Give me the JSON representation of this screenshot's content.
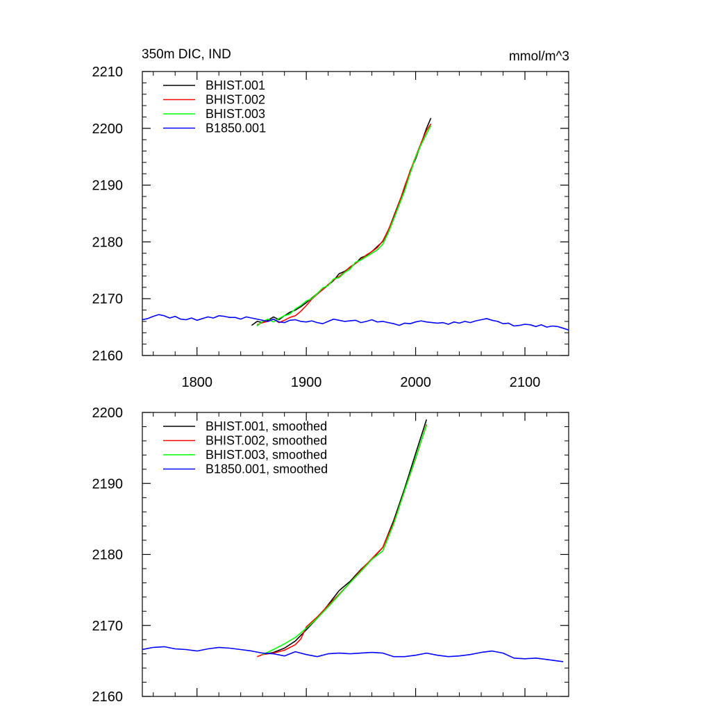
{
  "chart_data": [
    {
      "type": "line",
      "title": "350m DIC, IND",
      "units": "mmol/m^3",
      "xlim": [
        1750,
        2140
      ],
      "ylim": [
        2160,
        2210
      ],
      "xticks": [
        1800,
        1900,
        2000,
        2100
      ],
      "xtick_labels": [
        "1800",
        "1900",
        "2000",
        "2100"
      ],
      "yticks": [
        2160,
        2170,
        2180,
        2190,
        2200,
        2210
      ],
      "ytick_labels": [
        "2160",
        "2170",
        "2180",
        "2190",
        "2200",
        "2210"
      ],
      "legend_position": "top-left",
      "series": [
        {
          "name": "BHIST.001",
          "color": "#000000",
          "x": [
            1850,
            1855,
            1860,
            1865,
            1870,
            1875,
            1880,
            1885,
            1890,
            1895,
            1900,
            1905,
            1910,
            1915,
            1920,
            1925,
            1930,
            1935,
            1940,
            1945,
            1950,
            1955,
            1960,
            1965,
            1970,
            1975,
            1980,
            1985,
            1990,
            1995,
            2000,
            2005,
            2010,
            2014
          ],
          "y": [
            2165.3,
            2166.0,
            2165.8,
            2166.2,
            2166.8,
            2166.3,
            2167.0,
            2167.6,
            2168.0,
            2168.6,
            2169.3,
            2170.1,
            2170.9,
            2171.6,
            2172.4,
            2173.2,
            2174.4,
            2174.8,
            2175.5,
            2176.2,
            2177.2,
            2177.6,
            2178.3,
            2179.2,
            2180.1,
            2182.0,
            2184.5,
            2187.0,
            2189.5,
            2192.5,
            2194.6,
            2197.3,
            2200.0,
            2201.8
          ]
        },
        {
          "name": "BHIST.002",
          "color": "#ff0000",
          "x": [
            1855,
            1860,
            1865,
            1870,
            1875,
            1880,
            1885,
            1890,
            1895,
            1900,
            1905,
            1910,
            1915,
            1920,
            1925,
            1930,
            1935,
            1940,
            1945,
            1950,
            1955,
            1960,
            1965,
            1970,
            1975,
            1980,
            1985,
            1990,
            1995,
            2000,
            2005,
            2010,
            2014
          ],
          "y": [
            2165.4,
            2165.8,
            2166.0,
            2166.4,
            2165.8,
            2166.2,
            2166.7,
            2167.0,
            2167.8,
            2168.8,
            2169.9,
            2170.8,
            2171.6,
            2172.5,
            2173.3,
            2173.9,
            2174.7,
            2175.6,
            2176.2,
            2176.9,
            2177.7,
            2178.3,
            2179.0,
            2180.2,
            2182.1,
            2184.3,
            2186.9,
            2189.8,
            2192.4,
            2195.0,
            2197.4,
            2199.6,
            2200.8
          ]
        },
        {
          "name": "BHIST.003",
          "color": "#00ff00",
          "x": [
            1855,
            1860,
            1865,
            1870,
            1875,
            1880,
            1885,
            1890,
            1895,
            1900,
            1905,
            1910,
            1915,
            1920,
            1925,
            1930,
            1935,
            1940,
            1945,
            1950,
            1955,
            1960,
            1965,
            1970,
            1975,
            1980,
            1985,
            1990,
            1995,
            2000,
            2005,
            2010,
            2014
          ],
          "y": [
            2165.2,
            2166.0,
            2166.4,
            2165.9,
            2166.5,
            2167.0,
            2167.3,
            2168.2,
            2168.8,
            2169.6,
            2170.0,
            2170.9,
            2171.9,
            2172.3,
            2173.5,
            2173.7,
            2174.6,
            2175.2,
            2176.4,
            2176.8,
            2177.4,
            2178.0,
            2178.6,
            2179.6,
            2181.6,
            2184.0,
            2186.5,
            2189.0,
            2192.0,
            2194.9,
            2197.1,
            2199.0,
            2200.5
          ]
        },
        {
          "name": "B1850.001",
          "color": "#0000ff",
          "x": [
            1750,
            1755,
            1760,
            1765,
            1770,
            1775,
            1780,
            1785,
            1790,
            1795,
            1800,
            1805,
            1810,
            1815,
            1820,
            1825,
            1830,
            1835,
            1840,
            1845,
            1850,
            1855,
            1860,
            1865,
            1870,
            1875,
            1880,
            1885,
            1890,
            1895,
            1900,
            1905,
            1910,
            1915,
            1920,
            1925,
            1930,
            1935,
            1940,
            1945,
            1950,
            1955,
            1960,
            1965,
            1970,
            1975,
            1980,
            1985,
            1990,
            1995,
            2000,
            2005,
            2010,
            2015,
            2020,
            2025,
            2030,
            2035,
            2040,
            2045,
            2050,
            2055,
            2060,
            2065,
            2070,
            2075,
            2080,
            2085,
            2090,
            2095,
            2100,
            2105,
            2110,
            2115,
            2120,
            2125,
            2130,
            2135,
            2140
          ],
          "y": [
            2166.3,
            2166.5,
            2166.9,
            2167.2,
            2167.0,
            2166.6,
            2166.9,
            2166.4,
            2166.3,
            2166.6,
            2166.2,
            2166.5,
            2166.8,
            2166.6,
            2167.0,
            2166.9,
            2166.7,
            2166.7,
            2166.4,
            2166.8,
            2166.6,
            2166.4,
            2166.2,
            2166.0,
            2166.4,
            2165.9,
            2165.8,
            2166.2,
            2166.3,
            2166.0,
            2165.9,
            2166.1,
            2165.8,
            2165.6,
            2166.0,
            2166.4,
            2166.2,
            2166.0,
            2166.1,
            2166.2,
            2165.8,
            2166.0,
            2166.3,
            2165.9,
            2166.0,
            2165.8,
            2165.6,
            2165.3,
            2165.7,
            2165.6,
            2165.9,
            2166.1,
            2165.9,
            2165.8,
            2165.7,
            2165.8,
            2165.5,
            2165.9,
            2165.7,
            2166.0,
            2165.8,
            2166.1,
            2166.3,
            2166.5,
            2166.2,
            2166.0,
            2165.6,
            2165.7,
            2165.2,
            2165.3,
            2165.5,
            2165.4,
            2165.1,
            2165.4,
            2165.0,
            2165.2,
            2165.1,
            2164.8,
            2164.5
          ]
        }
      ]
    },
    {
      "type": "line",
      "xlim": [
        1750,
        2140
      ],
      "ylim": [
        2160,
        2200
      ],
      "xticks": [
        1800,
        1900,
        2000,
        2100
      ],
      "yticks": [
        2160,
        2170,
        2180,
        2190,
        2200
      ],
      "ytick_labels": [
        "2160",
        "2170",
        "2180",
        "2190",
        "2200"
      ],
      "legend_position": "top-left",
      "series": [
        {
          "name": "BHIST.001, smoothed",
          "color": "#000000",
          "x": [
            1860,
            1870,
            1880,
            1890,
            1900,
            1910,
            1920,
            1930,
            1940,
            1950,
            1960,
            1970,
            1980,
            1990,
            2000,
            2010
          ],
          "y": [
            2165.9,
            2166.2,
            2166.8,
            2167.8,
            2169.4,
            2171.0,
            2172.9,
            2174.9,
            2176.2,
            2177.9,
            2179.3,
            2181.0,
            2184.8,
            2189.3,
            2194.2,
            2199.0
          ]
        },
        {
          "name": "BHIST.002, smoothed",
          "color": "#ff0000",
          "x": [
            1855,
            1860,
            1870,
            1880,
            1890,
            1895,
            1900,
            1910,
            1920,
            1930,
            1940,
            1950,
            1960,
            1970,
            1980,
            1990,
            2000,
            2010
          ],
          "y": [
            2165.6,
            2165.9,
            2166.1,
            2166.5,
            2167.3,
            2168.1,
            2169.8,
            2171.2,
            2172.8,
            2174.4,
            2176.0,
            2177.8,
            2179.4,
            2181.0,
            2184.5,
            2189.0,
            2193.5,
            2198.3
          ]
        },
        {
          "name": "BHIST.003, smoothed",
          "color": "#00ff00",
          "x": [
            1860,
            1870,
            1880,
            1890,
            1900,
            1910,
            1920,
            1930,
            1940,
            1950,
            1960,
            1970,
            1980,
            1990,
            2000,
            2010
          ],
          "y": [
            2165.9,
            2166.6,
            2167.4,
            2168.3,
            2169.6,
            2171.0,
            2172.6,
            2174.3,
            2176.0,
            2177.6,
            2179.3,
            2180.5,
            2184.3,
            2189.0,
            2193.6,
            2198.2
          ]
        },
        {
          "name": "B1850.001, smoothed",
          "color": "#0000ff",
          "x": [
            1750,
            1760,
            1770,
            1780,
            1790,
            1800,
            1810,
            1820,
            1830,
            1840,
            1850,
            1860,
            1870,
            1880,
            1890,
            1900,
            1910,
            1920,
            1930,
            1940,
            1950,
            1960,
            1970,
            1980,
            1990,
            2000,
            2010,
            2020,
            2030,
            2040,
            2050,
            2060,
            2070,
            2080,
            2090,
            2100,
            2110,
            2120,
            2130,
            2135
          ],
          "y": [
            2166.6,
            2166.9,
            2167.0,
            2166.7,
            2166.6,
            2166.4,
            2166.7,
            2166.9,
            2166.8,
            2166.6,
            2166.4,
            2166.1,
            2166.0,
            2165.7,
            2166.3,
            2165.9,
            2165.6,
            2166.0,
            2166.1,
            2166.0,
            2166.1,
            2166.2,
            2166.1,
            2165.6,
            2165.6,
            2165.8,
            2166.1,
            2165.8,
            2165.6,
            2165.7,
            2165.9,
            2166.2,
            2166.4,
            2166.1,
            2165.4,
            2165.3,
            2165.4,
            2165.2,
            2165.0,
            2164.9
          ]
        }
      ]
    }
  ]
}
